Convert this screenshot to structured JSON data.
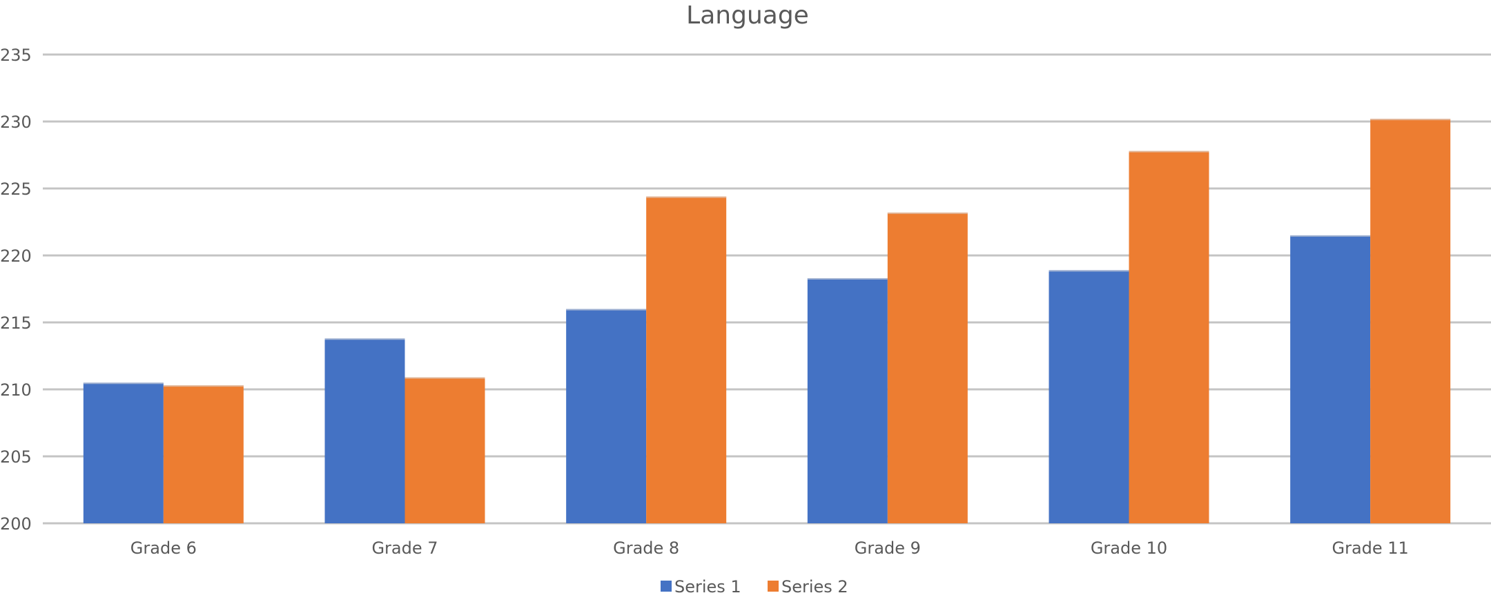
{
  "chart_data": {
    "type": "bar",
    "title": "Language",
    "categories": [
      "Grade 6",
      "Grade 7",
      "Grade 8",
      "Grade 9",
      "Grade 10",
      "Grade 11"
    ],
    "series": [
      {
        "name": "Series 1",
        "color": "#4472c4",
        "values": [
          210.5,
          213.8,
          216.0,
          218.3,
          218.9,
          221.5
        ]
      },
      {
        "name": "Series 2",
        "color": "#ed7d31",
        "values": [
          210.3,
          210.9,
          224.4,
          223.2,
          227.8,
          230.2
        ]
      }
    ],
    "ylim": [
      200,
      235
    ],
    "yticks": [
      "200",
      "205",
      "210",
      "215",
      "220",
      "225",
      "230",
      "235"
    ],
    "xlabel": "",
    "ylabel": "",
    "grid": true,
    "legend_position": "bottom"
  }
}
